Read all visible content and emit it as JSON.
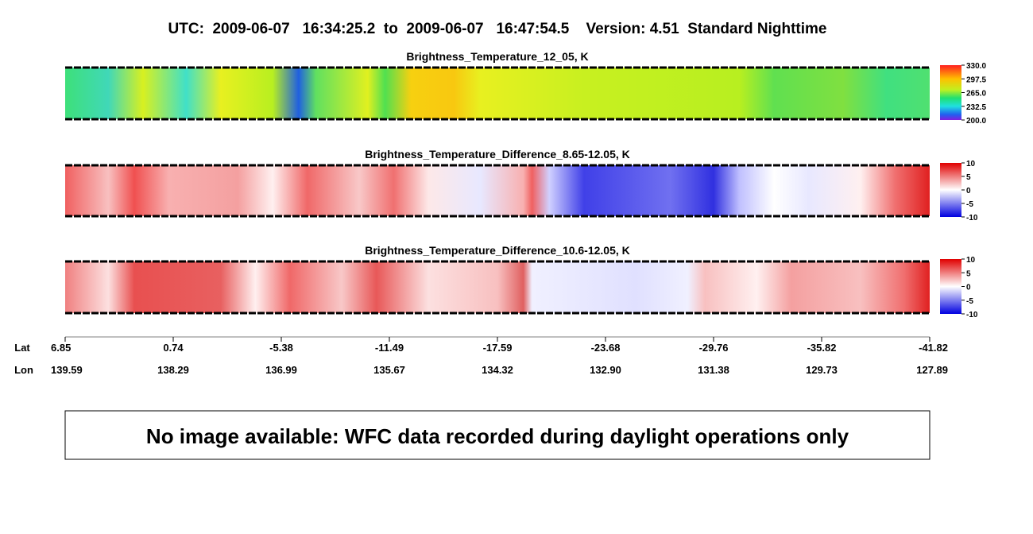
{
  "header": {
    "title": "UTC:  2009-06-07   16:34:25.2  to  2009-06-07   16:47:54.5    Version: 4.51  Standard Nighttime"
  },
  "panels": [
    {
      "title": "Brightness_Temperature_12_05, K",
      "colorbar": [
        "330.0",
        "297.5",
        "265.0",
        "232.5",
        "200.0"
      ]
    },
    {
      "title": "Brightness_Temperature_Difference_8.65-12.05, K",
      "colorbar": [
        "10",
        "5",
        "0",
        "-5",
        "-10"
      ]
    },
    {
      "title": "Brightness_Temperature_Difference_10.6-12.05, K",
      "colorbar": [
        "10",
        "5",
        "0",
        "-5",
        "-10"
      ]
    }
  ],
  "axis": {
    "lat_label": "Lat",
    "lon_label": "Lon",
    "lat": [
      "6.85",
      "0.74",
      "-5.38",
      "-11.49",
      "-17.59",
      "-23.68",
      "-29.76",
      "-35.82",
      "-41.82"
    ],
    "lon": [
      "139.59",
      "138.29",
      "136.99",
      "135.67",
      "134.32",
      "132.90",
      "131.38",
      "129.73",
      "127.89"
    ]
  },
  "notice": "No image available: WFC data recorded during daylight operations only"
}
